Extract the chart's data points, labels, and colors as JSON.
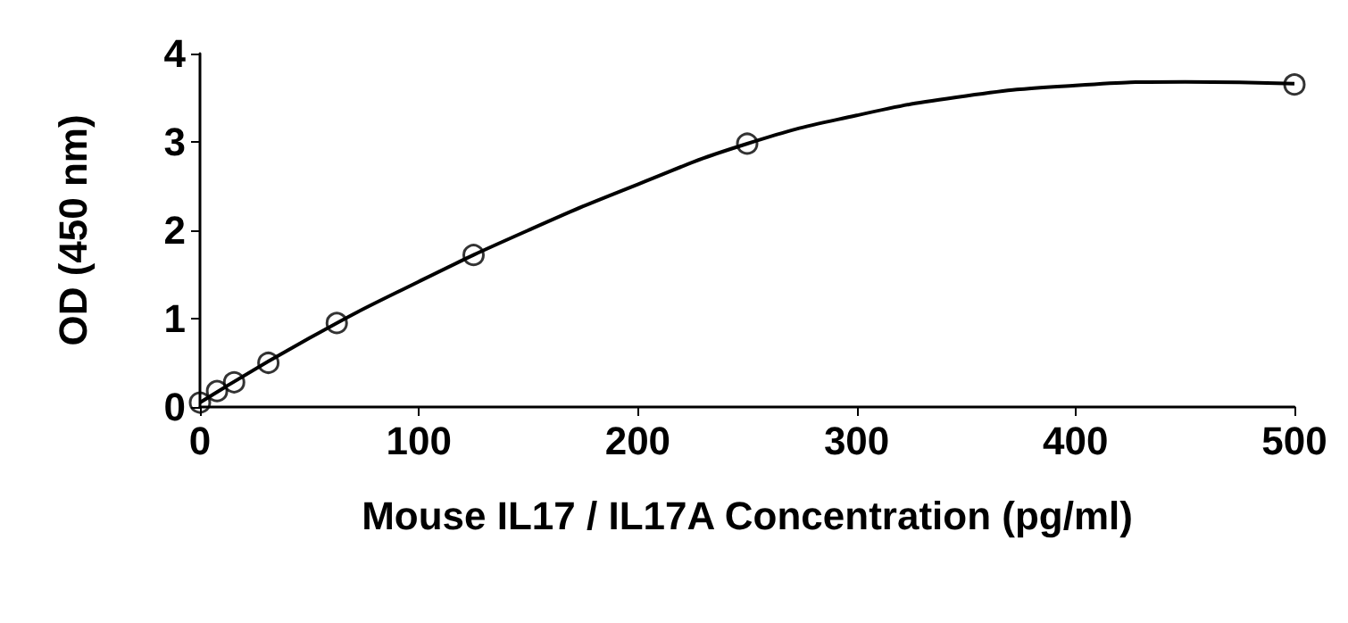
{
  "chart_data": {
    "type": "scatter",
    "xlabel": "Mouse IL17 / IL17A Concentration (pg/ml)",
    "ylabel": "OD (450 nm)",
    "xlim": [
      0,
      500
    ],
    "xticks": [
      0,
      100,
      200,
      300,
      400,
      500
    ],
    "ylim": [
      0,
      4
    ],
    "yticks": [
      0,
      1,
      2,
      3,
      4
    ],
    "grid": false,
    "series": [
      {
        "color": "#000000",
        "marker": "circle",
        "x": [
          0,
          7.8,
          15.6,
          31.25,
          62.5,
          125,
          250,
          500
        ],
        "values": [
          0.05,
          0.18,
          0.28,
          0.5,
          0.95,
          1.72,
          2.98,
          3.65
        ]
      },
      {
        "type": "line",
        "color": "#000000",
        "marker": "none",
        "line_style": "solid",
        "x": [
          0,
          50,
          100,
          150,
          200,
          250,
          300,
          350,
          400,
          450,
          500
        ],
        "values": [
          0.05,
          0.78,
          1.42,
          2.0,
          2.52,
          2.98,
          3.3,
          3.52,
          3.64,
          3.68,
          3.66
        ]
      }
    ]
  }
}
